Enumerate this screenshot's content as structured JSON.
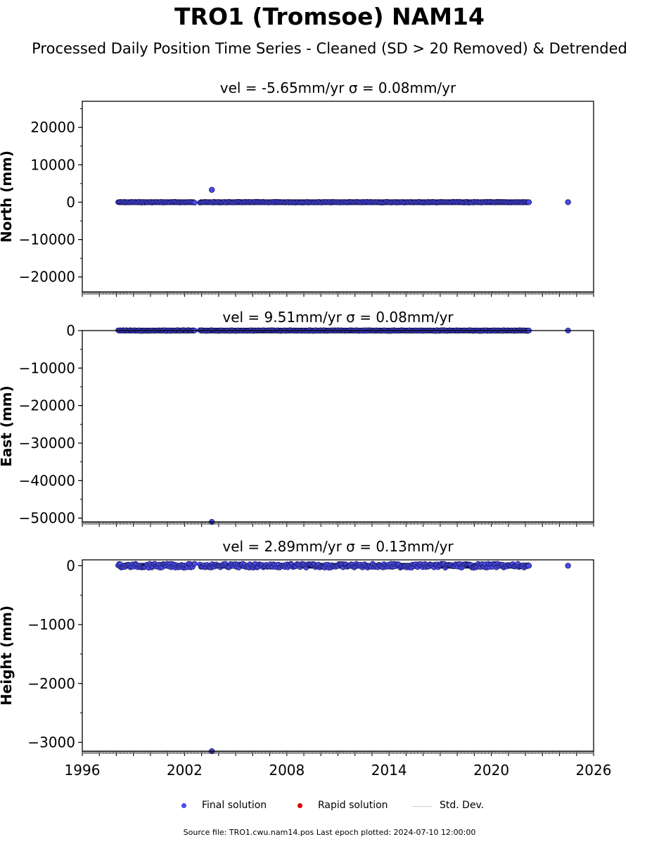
{
  "header": {
    "title": "TRO1 (Tromsoe) NAM14",
    "subtitle": "Processed Daily Position Time Series - Cleaned (SD > 20 Removed) & Detrended"
  },
  "legend": {
    "final": "Final solution",
    "rapid": "Rapid solution",
    "std": "Std. Dev."
  },
  "footer": {
    "source": "Source file: TRO1.cwu.nam14.pos  Last epoch plotted: 2024-07-10 12:00:00"
  },
  "colors": {
    "final": "#4a4ae6",
    "rapid": "#dd0000",
    "std": "#cccccc",
    "marker_edge": "#10104a"
  },
  "chart_data": [
    {
      "type": "scatter",
      "title": "vel = -5.65mm/yr   σ = 0.08mm/yr",
      "ylabel": "North (mm)",
      "xlim": [
        1996,
        2026
      ],
      "ylim": [
        -24000,
        27000
      ],
      "yticks": [
        -20000,
        -10000,
        0,
        10000,
        20000
      ],
      "segments": [
        [
          1998.1,
          2002.6
        ],
        [
          2002.9,
          2022.2
        ]
      ],
      "outliers": [
        {
          "x": 2003.6,
          "y": 3300
        },
        {
          "x": 2022.2,
          "y": 0
        },
        {
          "x": 2024.5,
          "y": 0
        }
      ]
    },
    {
      "type": "scatter",
      "title": "vel = 9.51mm/yr   σ = 0.08mm/yr",
      "ylabel": "East (mm)",
      "xlim": [
        1996,
        2026
      ],
      "ylim": [
        -51000,
        0
      ],
      "yticks": [
        -50000,
        -40000,
        -30000,
        -20000,
        -10000,
        0
      ],
      "segments": [
        [
          1998.1,
          2002.6
        ],
        [
          2002.9,
          2022.2
        ]
      ],
      "outliers": [
        {
          "x": 2003.6,
          "y": -51000
        },
        {
          "x": 2022.2,
          "y": 0
        },
        {
          "x": 2024.5,
          "y": 0
        }
      ]
    },
    {
      "type": "scatter",
      "title": "vel = 2.89mm/yr   σ = 0.13mm/yr",
      "ylabel": "Height (mm)",
      "xlim": [
        1996,
        2026
      ],
      "xticks": [
        1996,
        2002,
        2008,
        2014,
        2020,
        2026
      ],
      "ylim": [
        -3150,
        100
      ],
      "yticks": [
        -3000,
        -2000,
        -1000,
        0
      ],
      "segments": [
        [
          1998.1,
          2002.6
        ],
        [
          2002.9,
          2022.2
        ]
      ],
      "outliers": [
        {
          "x": 2003.6,
          "y": -3150
        },
        {
          "x": 2022.2,
          "y": 0
        },
        {
          "x": 2024.5,
          "y": 0
        }
      ]
    }
  ]
}
